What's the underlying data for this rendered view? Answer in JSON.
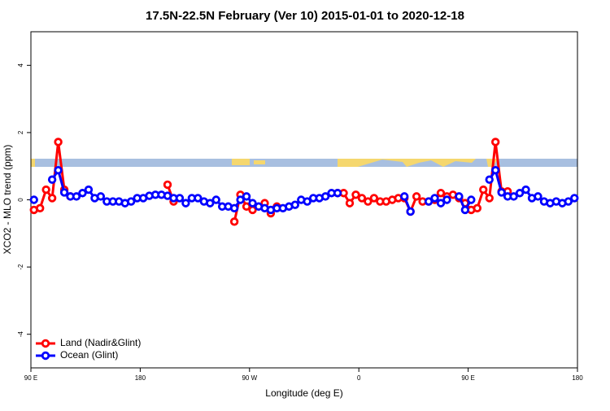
{
  "chart_data": {
    "type": "line",
    "title": "17.5N-22.5N February (Ver 10)   2015-01-01 to 2020-12-18",
    "x_label": "Longitude (deg E)",
    "y_label": "XCO2 - MLO trend (ppm)",
    "x": [
      92.5,
      97.5,
      102.5,
      107.5,
      112.5,
      117.5,
      122.5,
      127.5,
      132.5,
      137.5,
      142.5,
      147.5,
      152.5,
      157.5,
      162.5,
      167.5,
      172.5,
      177.5,
      182.5,
      187.5,
      192.5,
      197.5,
      202.5,
      207.5,
      212.5,
      217.5,
      222.5,
      227.5,
      232.5,
      237.5,
      242.5,
      247.5,
      252.5,
      257.5,
      262.5,
      267.5,
      272.5,
      277.5,
      282.5,
      287.5,
      292.5,
      297.5,
      302.5,
      307.5,
      312.5,
      317.5,
      322.5,
      327.5,
      332.5,
      337.5,
      342.5,
      347.5,
      352.5,
      357.5,
      362.5,
      367.5,
      372.5,
      377.5,
      382.5,
      387.5,
      392.5,
      397.5,
      402.5,
      407.5,
      412.5,
      417.5,
      422.5,
      427.5,
      432.5,
      437.5,
      442.5,
      447.5,
      452.5,
      457.5,
      462.5,
      467.5,
      472.5,
      477.5,
      482.5,
      487.5,
      492.5,
      497.5,
      502.5,
      507.5,
      512.5,
      517.5,
      522.5,
      527.5,
      532.5,
      537.5
    ],
    "series": [
      {
        "name": "Land (Nadir&Glint)",
        "color": "#ff0000",
        "values": [
          -0.3,
          -0.25,
          0.3,
          0.05,
          1.72,
          0.3,
          0.1,
          null,
          null,
          null,
          null,
          null,
          null,
          null,
          null,
          null,
          null,
          null,
          null,
          null,
          null,
          null,
          0.45,
          -0.05,
          null,
          null,
          null,
          null,
          null,
          null,
          null,
          null,
          null,
          -0.65,
          0.15,
          -0.2,
          -0.3,
          null,
          -0.1,
          -0.4,
          -0.2,
          null,
          null,
          null,
          null,
          null,
          null,
          null,
          null,
          null,
          0.2,
          0.2,
          -0.1,
          0.15,
          0.05,
          -0.05,
          0.05,
          -0.05,
          -0.05,
          0.0,
          0.05,
          0.05,
          -0.35,
          0.1,
          -0.05,
          -0.05,
          0.0,
          0.2,
          0.1,
          0.15,
          0.05,
          -0.1,
          -0.3,
          -0.25,
          0.3,
          0.05,
          1.72,
          0.25,
          0.25,
          null,
          null,
          null,
          null,
          null,
          null,
          null,
          null,
          null,
          null,
          null
        ]
      },
      {
        "name": "Ocean (Glint)",
        "color": "#0000ff",
        "values": [
          0.0,
          null,
          null,
          0.6,
          0.88,
          0.22,
          0.1,
          0.1,
          0.2,
          0.3,
          0.05,
          0.1,
          -0.05,
          -0.05,
          -0.05,
          -0.1,
          -0.05,
          0.05,
          0.05,
          0.12,
          0.15,
          0.15,
          0.12,
          0.05,
          0.05,
          -0.1,
          0.05,
          0.05,
          -0.05,
          -0.1,
          0.0,
          -0.2,
          -0.2,
          -0.25,
          0.0,
          0.1,
          -0.1,
          -0.2,
          -0.25,
          -0.3,
          -0.25,
          -0.25,
          -0.2,
          -0.15,
          0.0,
          -0.05,
          0.05,
          0.05,
          0.1,
          0.2,
          0.2,
          null,
          null,
          null,
          null,
          null,
          null,
          null,
          null,
          null,
          null,
          0.1,
          -0.35,
          null,
          null,
          -0.05,
          0.05,
          -0.1,
          0.0,
          null,
          0.1,
          -0.3,
          0.0,
          null,
          null,
          0.6,
          0.88,
          0.22,
          0.1,
          0.1,
          0.2,
          0.3,
          0.05,
          0.1,
          -0.05,
          -0.1,
          -0.05,
          -0.1,
          -0.05,
          0.05
        ]
      }
    ],
    "xlim": [
      90,
      540
    ],
    "xticks": [
      {
        "value": 90,
        "label": "90 E"
      },
      {
        "value": 180,
        "label": "180"
      },
      {
        "value": 270,
        "label": "90 W"
      },
      {
        "value": 360,
        "label": "0"
      },
      {
        "value": 450,
        "label": "90 E"
      },
      {
        "value": 540,
        "label": "180"
      }
    ],
    "ylim": [
      -5,
      5
    ],
    "yticks": [
      -4,
      -2,
      0,
      2,
      4
    ],
    "legend": "bottom-left"
  }
}
